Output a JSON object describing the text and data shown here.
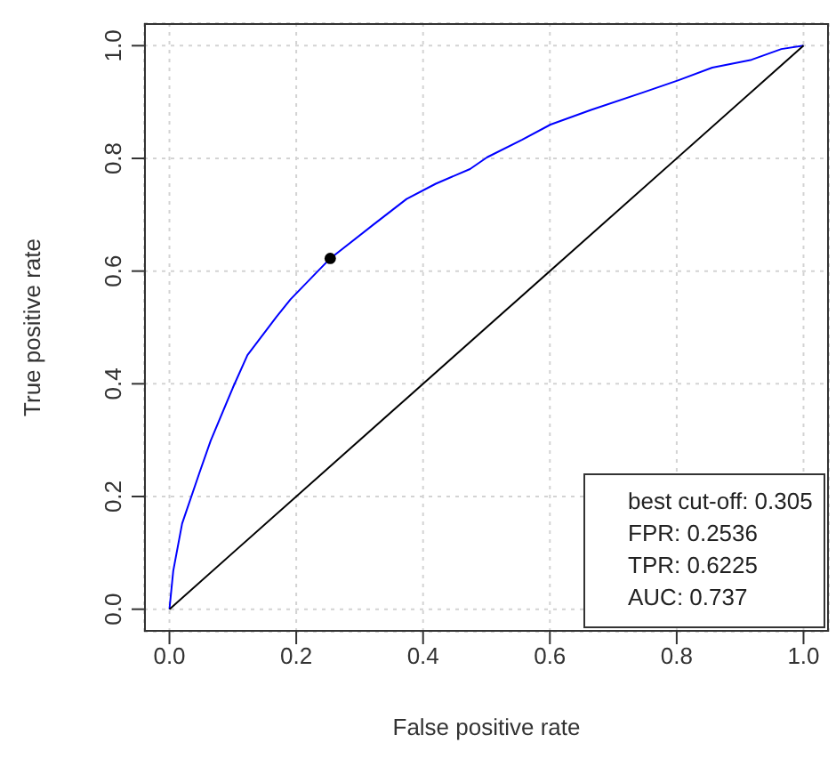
{
  "chart_data": {
    "type": "line",
    "xlabel": "False positive rate",
    "ylabel": "True positive rate",
    "xlim": [
      -0.04,
      1.04
    ],
    "ylim": [
      -0.04,
      1.04
    ],
    "xticks": [
      {
        "value": 0,
        "label": "0.0"
      },
      {
        "value": 0.2,
        "label": "0.2"
      },
      {
        "value": 0.4,
        "label": "0.4"
      },
      {
        "value": 0.6,
        "label": "0.6"
      },
      {
        "value": 0.8,
        "label": "0.8"
      },
      {
        "value": 1,
        "label": "1.0"
      }
    ],
    "yticks": [
      {
        "value": 0,
        "label": "0.0"
      },
      {
        "value": 0.2,
        "label": "0.2"
      },
      {
        "value": 0.4,
        "label": "0.4"
      },
      {
        "value": 0.6,
        "label": "0.6"
      },
      {
        "value": 0.8,
        "label": "0.8"
      },
      {
        "value": 1,
        "label": "1.0"
      }
    ],
    "grid": true,
    "series": [
      {
        "color": "#0000ff",
        "x": [
          0,
          0.006,
          0.02,
          0.047,
          0.065,
          0.1,
          0.123,
          0.169,
          0.191,
          0.2536,
          0.32,
          0.374,
          0.42,
          0.474,
          0.501,
          0.556,
          0.601,
          0.665,
          0.747,
          0.801,
          0.856,
          0.918,
          0.965,
          1
        ],
        "values": [
          0,
          0.068,
          0.152,
          0.241,
          0.299,
          0.393,
          0.451,
          0.519,
          0.55,
          0.6225,
          0.681,
          0.728,
          0.755,
          0.781,
          0.802,
          0.833,
          0.86,
          0.886,
          0.917,
          0.938,
          0.961,
          0.975,
          0.994,
          1
        ]
      },
      {
        "color": "#000000",
        "x": [
          0,
          1
        ],
        "values": [
          0,
          1
        ]
      },
      {
        "type": "scatter",
        "color": "#000000",
        "x": [
          0.2536
        ],
        "values": [
          0.6225
        ]
      }
    ],
    "annotations": [
      "best cut-off: 0.305",
      "FPR: 0.2536",
      "TPR: 0.6225",
      "AUC: 0.737"
    ]
  }
}
